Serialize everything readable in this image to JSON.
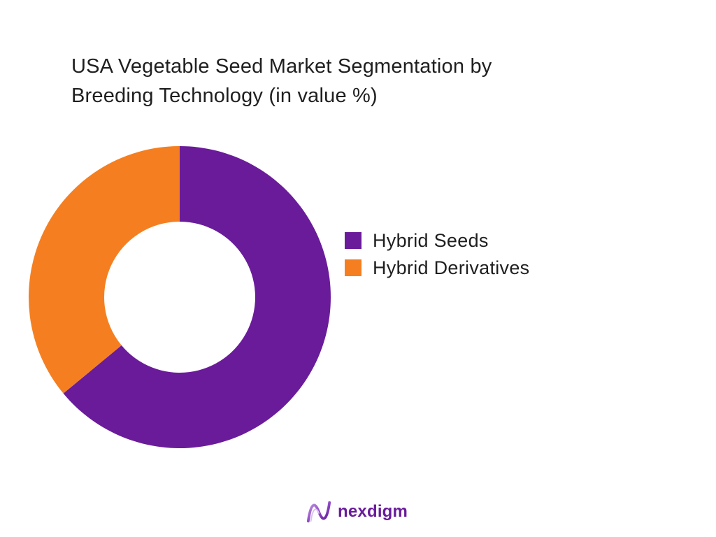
{
  "chart_data": {
    "type": "pie",
    "title_lines": [
      "USA Vegetable Seed Market Segmentation by",
      "Breeding Technology (in value %)"
    ],
    "categories": [
      "Hybrid Seeds",
      "Hybrid Derivatives"
    ],
    "values": [
      64,
      36
    ],
    "colors": [
      "#6a1b9a",
      "#f57f20"
    ],
    "legend_position": "right",
    "donut": true
  },
  "brand": {
    "name": "nexdigm",
    "logo_icon": "nexdigm-wave-logo-icon",
    "color": "#6a1b9a"
  }
}
